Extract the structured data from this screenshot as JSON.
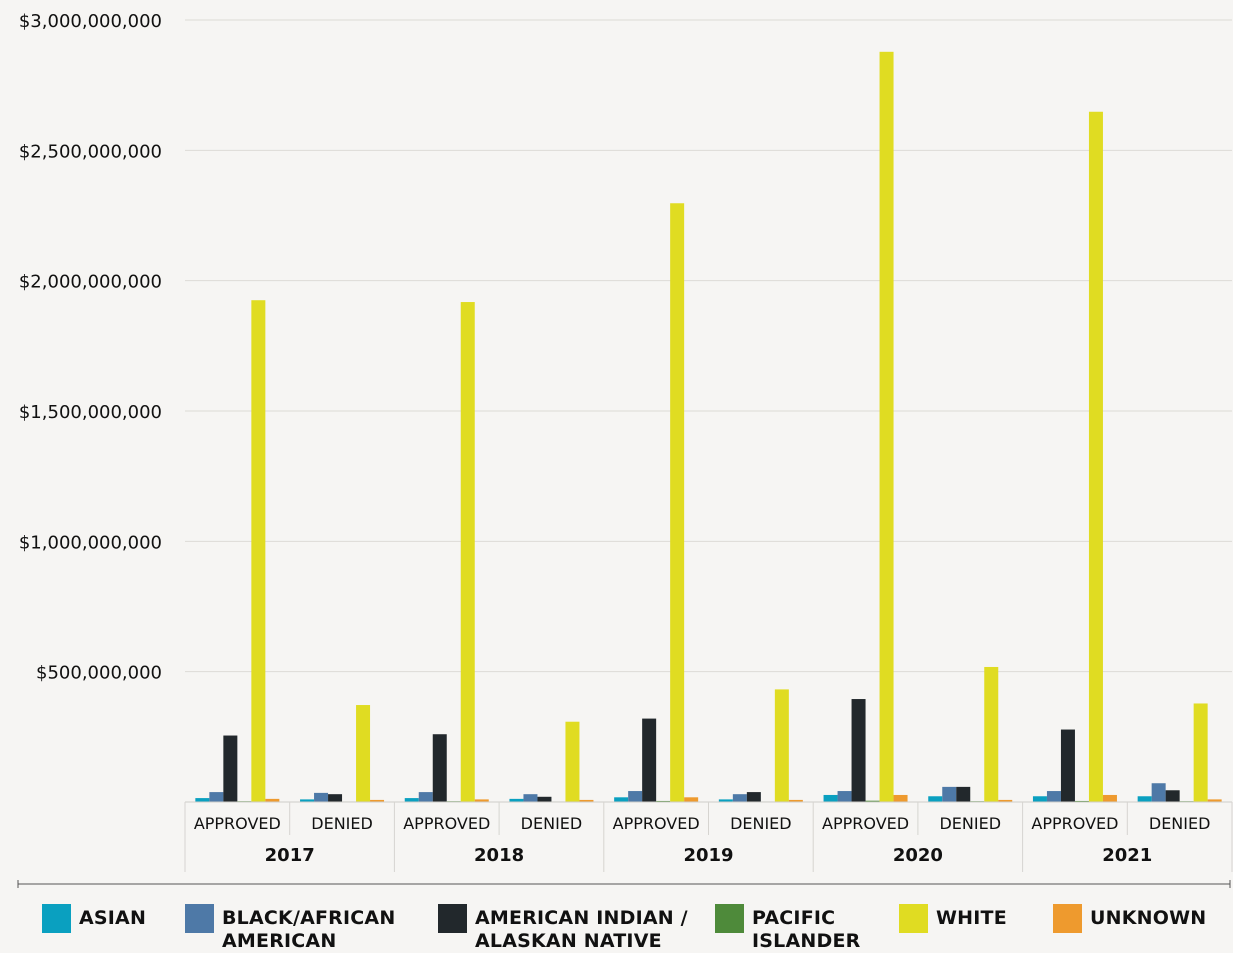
{
  "chart_data": {
    "type": "bar",
    "y_tick_labels": [
      "$500,000,000",
      "$1,000,000,000",
      "$1,500,000,000",
      "$2,000,000,000",
      "$2,500,000,000",
      "$3,000,000,000"
    ],
    "y_ticks": [
      500000000,
      1000000000,
      1500000000,
      2000000000,
      2500000000,
      3000000000
    ],
    "ylim": [
      0,
      3000000000
    ],
    "grid": true,
    "legend_position": "bottom",
    "years": [
      "2017",
      "2018",
      "2019",
      "2020",
      "2021"
    ],
    "statuses": [
      "APPROVED",
      "DENIED"
    ],
    "categories": [
      "2017 APPROVED",
      "2017 DENIED",
      "2018 APPROVED",
      "2018 DENIED",
      "2019 APPROVED",
      "2019 DENIED",
      "2020 APPROVED",
      "2020 DENIED",
      "2021 APPROVED",
      "2021 DENIED"
    ],
    "series": [
      {
        "name": "ASIAN",
        "color": "#0aa0c0",
        "values": [
          15000000,
          10000000,
          15000000,
          12000000,
          18000000,
          10000000,
          27000000,
          22000000,
          22000000,
          22000000
        ]
      },
      {
        "name": "BLACK/AFRICAN AMERICAN",
        "color": "#4e79a7",
        "values": [
          38000000,
          35000000,
          38000000,
          30000000,
          42000000,
          30000000,
          42000000,
          58000000,
          42000000,
          72000000
        ]
      },
      {
        "name": "AMERICAN INDIAN / ALASKAN NATIVE",
        "color": "#22282c",
        "values": [
          255000000,
          30000000,
          260000000,
          20000000,
          320000000,
          38000000,
          395000000,
          58000000,
          278000000,
          45000000
        ]
      },
      {
        "name": "PACIFIC ISLANDER",
        "color": "#4e8a3a",
        "values": [
          3000000,
          2000000,
          3000000,
          2000000,
          4000000,
          2000000,
          5000000,
          3000000,
          4000000,
          3000000
        ]
      },
      {
        "name": "WHITE",
        "color": "#e0dc22",
        "values": [
          1925000000,
          372000000,
          1918000000,
          308000000,
          2297000000,
          432000000,
          2878000000,
          518000000,
          2648000000,
          378000000
        ]
      },
      {
        "name": "UNKNOWN",
        "color": "#ee9a2e",
        "values": [
          12000000,
          8000000,
          10000000,
          8000000,
          18000000,
          8000000,
          27000000,
          8000000,
          27000000,
          10000000
        ]
      }
    ]
  }
}
